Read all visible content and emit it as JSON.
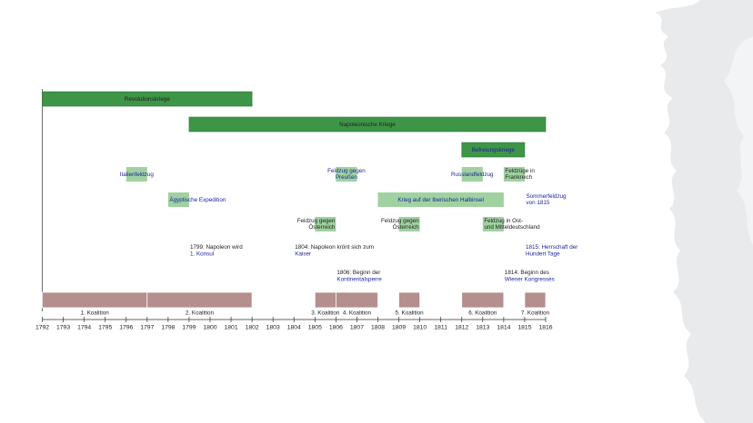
{
  "colors": {
    "dark_green": "#3e9447",
    "dark_green_border": "#2f7a37",
    "light_green": "#9fd2a0",
    "coalition": "#b58e8e",
    "coalition_border": "#9a6f6f",
    "link_text": "#1a1f9c",
    "plain_text": "#222222",
    "deco": "#e8eaec"
  },
  "axis": {
    "start": 1792,
    "end": 1816,
    "ticks": [
      "1792",
      "1793",
      "1794",
      "1795",
      "1796",
      "1797",
      "1798",
      "1799",
      "1800",
      "1801",
      "1802",
      "1803",
      "1804",
      "1805",
      "1806",
      "1807",
      "1808",
      "1809",
      "1810",
      "1811",
      "1812",
      "1813",
      "1814",
      "1815",
      "1816"
    ]
  },
  "wars": [
    {
      "label": "Revolutionskriege",
      "start": 1792,
      "end": 1802,
      "row": 0,
      "link": false
    },
    {
      "label": "Napoleonische Kriege",
      "start": 1799,
      "end": 1816,
      "row": 1,
      "link": false
    },
    {
      "label": "Befreiungskriege",
      "start": 1812,
      "end": 1815,
      "row": 2,
      "link": true
    }
  ],
  "campaigns": [
    {
      "label": "Italienfeldzug",
      "start": 1796,
      "end": 1797,
      "row": 3,
      "link": true,
      "align": "center"
    },
    {
      "label": "Feldzug gegen\nPreußen",
      "start": 1806,
      "end": 1807,
      "row": 3,
      "link": true,
      "align": "center"
    },
    {
      "label": "Russlandfeldzug",
      "start": 1812,
      "end": 1813,
      "row": 3,
      "link": true,
      "align": "center"
    },
    {
      "label": "Feldzüge in\nFrankreich",
      "start": 1814,
      "end": 1815,
      "row": 3,
      "link": false,
      "align": "start"
    },
    {
      "label": "Ägyptische Expedition",
      "start": 1798,
      "end": 1799,
      "row": 4,
      "link": true,
      "align": "start"
    },
    {
      "label": "Krieg auf der Iberischen Halbinsel",
      "start": 1808,
      "end": 1814,
      "row": 4,
      "link": true,
      "align": "center"
    },
    {
      "label": "Sommerfeldzug\nvon 1815",
      "start": 1815,
      "end": 1815,
      "row": 4,
      "link": true,
      "align": "start"
    },
    {
      "label": "Feldzug gegen\nÖsterreich",
      "start": 1805,
      "end": 1806,
      "row": 5,
      "link": false,
      "align": "end"
    },
    {
      "label": "Feldzug gegen\nÖsterreich",
      "start": 1809,
      "end": 1810,
      "row": 5,
      "link": false,
      "align": "end"
    },
    {
      "label": "Feldzug in Ost-\nund Mitteldeutschland",
      "start": 1813,
      "end": 1814,
      "row": 5,
      "link": false,
      "align": "start"
    }
  ],
  "events": [
    {
      "lines": [
        "1799: Napoleon wird",
        "1. Konsul"
      ],
      "link_lines": [
        1
      ],
      "year": 1799,
      "row": 6
    },
    {
      "lines": [
        "1804: Napoleon krönt sich zum",
        "Kaiser"
      ],
      "link_lines": [
        1
      ],
      "year": 1804,
      "row": 6
    },
    {
      "lines": [
        "1815: Herrschaft der",
        "Hundert Tage"
      ],
      "link_lines": [
        0,
        1
      ],
      "year": 1815,
      "row": 6
    },
    {
      "lines": [
        "1806: Beginn der",
        "Kontinentalsperre"
      ],
      "link_lines": [
        1
      ],
      "year": 1806,
      "row": 7
    },
    {
      "lines": [
        "1814: Beginn des",
        "Wiener Kongresses"
      ],
      "link_lines": [
        1
      ],
      "year": 1814,
      "row": 7
    }
  ],
  "coalitions": [
    {
      "label": "1. Koalition",
      "start": 1792,
      "end": 1797
    },
    {
      "label": "2. Koalition",
      "start": 1797,
      "end": 1802
    },
    {
      "label": "3. Koalition",
      "start": 1805,
      "end": 1806
    },
    {
      "label": "4. Koalition",
      "start": 1806,
      "end": 1808
    },
    {
      "label": "5. Koalition",
      "start": 1809,
      "end": 1810
    },
    {
      "label": "6. Koalition",
      "start": 1812,
      "end": 1814
    },
    {
      "label": "7. Koalition",
      "start": 1815,
      "end": 1816
    }
  ]
}
